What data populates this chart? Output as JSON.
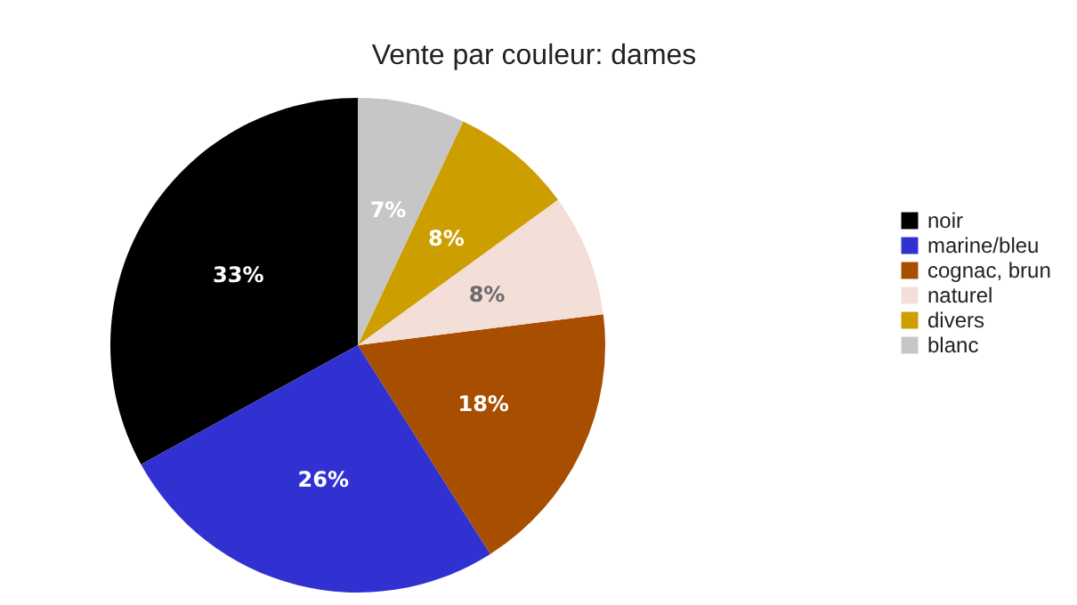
{
  "chart_data": {
    "type": "pie",
    "title": "Vente par couleur: dames",
    "categories": [
      "noir",
      "marine/bleu",
      "cognac, brun",
      "naturel",
      "divers",
      "blanc"
    ],
    "values": [
      33,
      26,
      18,
      8,
      8,
      7
    ],
    "colors": [
      "#000000",
      "#3131d1",
      "#a74e00",
      "#f3ded8",
      "#cc9e00",
      "#c6c6c6"
    ],
    "value_labels": [
      "33%",
      "26%",
      "18%",
      "8%",
      "8%",
      "7%"
    ],
    "legend": "right"
  }
}
